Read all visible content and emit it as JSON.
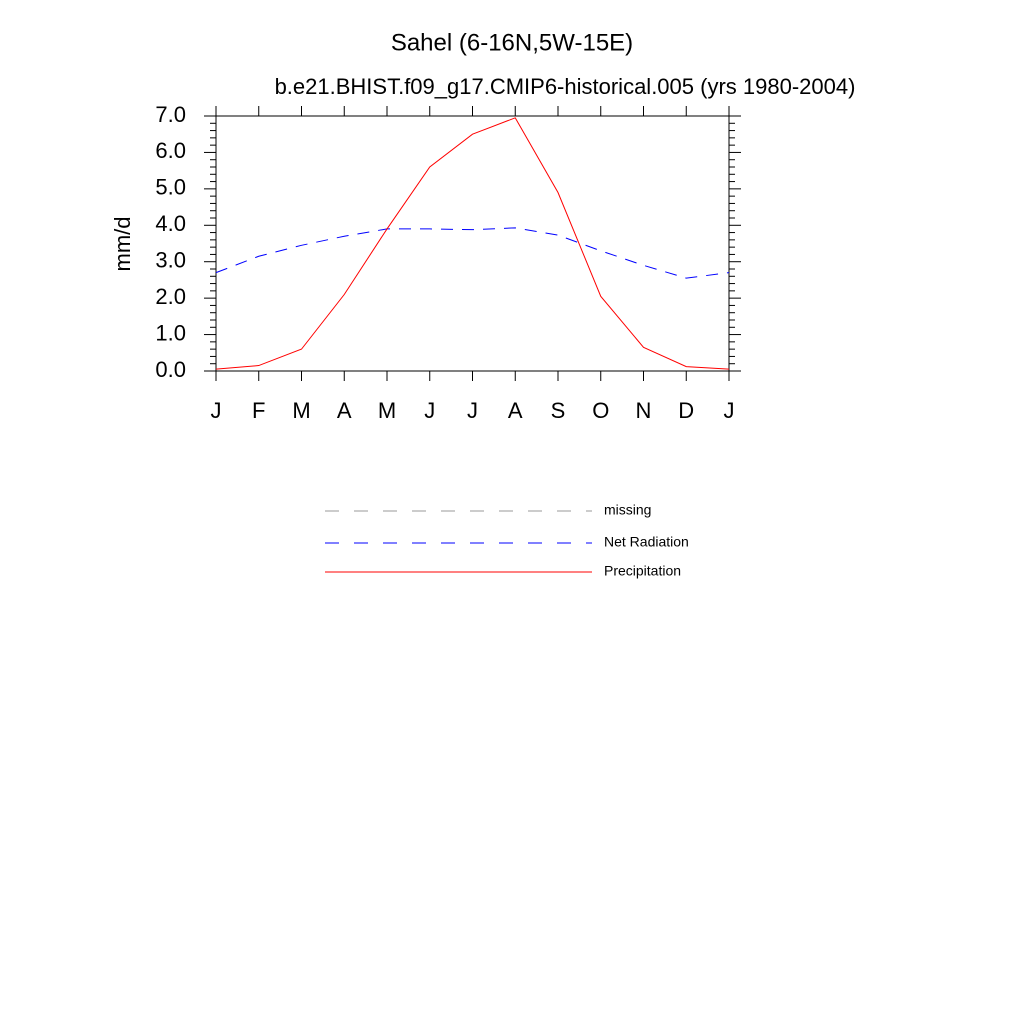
{
  "chart_data": {
    "type": "line",
    "title": "Sahel (6-16N,5W-15E)",
    "subtitle": "b.e21.BHIST.f09_g17.CMIP6-historical.005 (yrs 1980-2004)",
    "y_label": "mm/d",
    "categories": [
      "J",
      "F",
      "M",
      "A",
      "M",
      "J",
      "J",
      "A",
      "S",
      "O",
      "N",
      "D",
      "J"
    ],
    "series": [
      {
        "name": "missing",
        "color": "#999999",
        "dash": true,
        "values": [
          null,
          null,
          null,
          null,
          null,
          null,
          null,
          null,
          null,
          null,
          null,
          null,
          null
        ]
      },
      {
        "name": "Net Radiation",
        "color": "#0000ff",
        "dash": true,
        "values": [
          2.7,
          3.15,
          3.45,
          3.7,
          3.9,
          3.9,
          3.88,
          3.93,
          3.73,
          3.3,
          2.9,
          2.55,
          2.7
        ]
      },
      {
        "name": "Precipitation",
        "color": "#ff0000",
        "dash": false,
        "values": [
          0.05,
          0.15,
          0.6,
          2.1,
          3.9,
          5.6,
          6.5,
          6.95,
          4.9,
          2.05,
          0.65,
          0.12,
          0.05
        ]
      }
    ],
    "ylim": [
      0,
      7
    ],
    "yticks": [
      {
        "value": 0,
        "label": "0.0"
      },
      {
        "value": 1,
        "label": "1.0"
      },
      {
        "value": 2,
        "label": "2.0"
      },
      {
        "value": 3,
        "label": "3.0"
      },
      {
        "value": 4,
        "label": "4.0"
      },
      {
        "value": 5,
        "label": "5.0"
      },
      {
        "value": 6,
        "label": "6.0"
      },
      {
        "value": 7,
        "label": "7.0"
      }
    ]
  }
}
